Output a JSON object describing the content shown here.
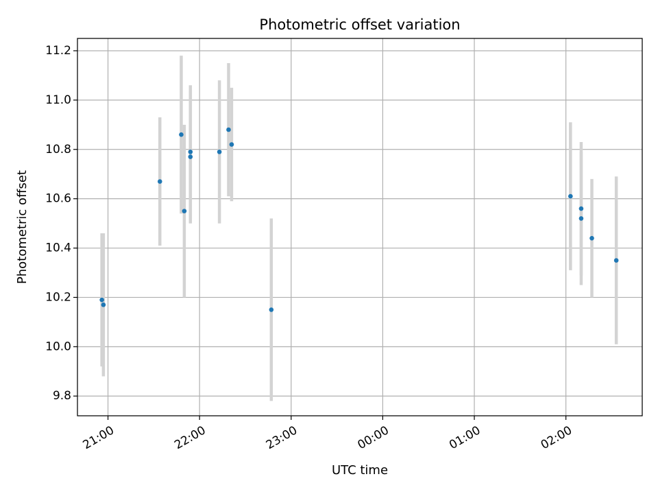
{
  "chart_data": {
    "type": "scatter",
    "title": "Photometric offset variation",
    "xlabel": "UTC time",
    "ylabel": "Photometric offset",
    "x_axis": {
      "kind": "time",
      "reference_date": "",
      "range": [
        "20:40",
        "26:50"
      ],
      "ticks": [
        {
          "time": "21:00",
          "label": "21:00"
        },
        {
          "time": "22:00",
          "label": "22:00"
        },
        {
          "time": "23:00",
          "label": "23:00"
        },
        {
          "time": "24:00",
          "label": "00:00"
        },
        {
          "time": "25:00",
          "label": "01:00"
        },
        {
          "time": "26:00",
          "label": "02:00"
        }
      ]
    },
    "ylim": [
      9.72,
      11.25
    ],
    "y_ticks": [
      9.8,
      10.0,
      10.2,
      10.4,
      10.6,
      10.8,
      11.0,
      11.2
    ],
    "y_tick_labels": [
      "9.8",
      "10.0",
      "10.2",
      "10.4",
      "10.6",
      "10.8",
      "11.0",
      "11.2"
    ],
    "grid": true,
    "series": [
      {
        "marker_color": "#1f77b4",
        "errorbar_color": "#d3d3d3",
        "points": [
          {
            "time": "20:56",
            "y": 10.19,
            "err": 0.27
          },
          {
            "time": "20:57",
            "y": 10.17,
            "err": 0.29
          },
          {
            "time": "21:34",
            "y": 10.67,
            "err": 0.26
          },
          {
            "time": "21:48",
            "y": 10.86,
            "err": 0.32
          },
          {
            "time": "21:50",
            "y": 10.55,
            "err": 0.35
          },
          {
            "time": "21:54",
            "y": 10.79,
            "err": 0.27
          },
          {
            "time": "21:54",
            "y": 10.77,
            "err": 0.27
          },
          {
            "time": "22:13",
            "y": 10.79,
            "err": 0.29
          },
          {
            "time": "22:19",
            "y": 10.88,
            "err": 0.27
          },
          {
            "time": "22:21",
            "y": 10.82,
            "err": 0.23
          },
          {
            "time": "22:47",
            "y": 10.15,
            "err": 0.37
          },
          {
            "time": "26:03",
            "y": 10.61,
            "err": 0.3
          },
          {
            "time": "26:10",
            "y": 10.56,
            "err": 0.27
          },
          {
            "time": "26:10",
            "y": 10.52,
            "err": 0.27
          },
          {
            "time": "26:17",
            "y": 10.44,
            "err": 0.24
          },
          {
            "time": "26:33",
            "y": 10.35,
            "err": 0.34
          }
        ]
      }
    ]
  }
}
